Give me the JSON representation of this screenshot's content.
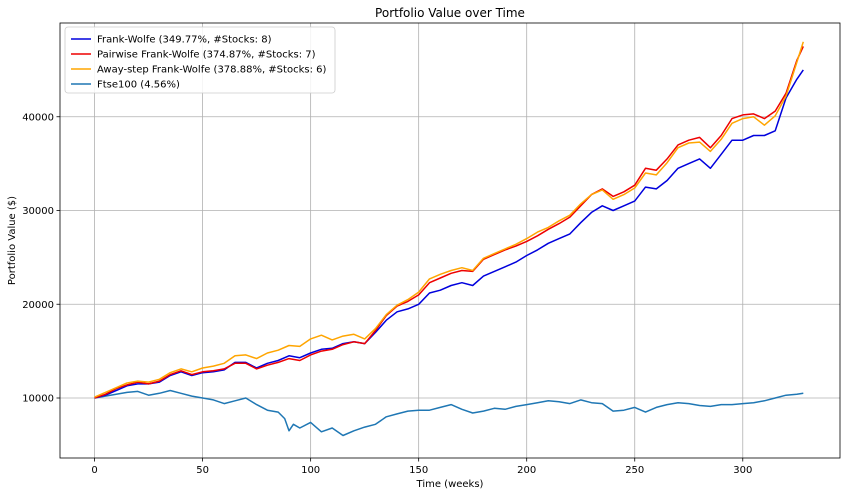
{
  "chart_data": {
    "type": "line",
    "title": "Portfolio Value over Time",
    "xlabel": "Time (weeks)",
    "ylabel": "Portfolio Value ($)",
    "xlim": [
      -16,
      345
    ],
    "ylim": [
      3600,
      50000
    ],
    "xticks": [
      0,
      50,
      100,
      150,
      200,
      250,
      300
    ],
    "yticks": [
      10000,
      20000,
      30000,
      40000
    ],
    "grid": true,
    "legend_position": "top-left",
    "series": [
      {
        "name": "Frank-Wolfe (349.77%, #Stocks: 8)",
        "color": "#0000dd",
        "x": [
          0,
          5,
          10,
          15,
          20,
          25,
          30,
          35,
          40,
          45,
          50,
          55,
          60,
          65,
          70,
          75,
          80,
          85,
          90,
          95,
          100,
          105,
          110,
          115,
          120,
          125,
          130,
          135,
          140,
          145,
          150,
          155,
          160,
          165,
          170,
          175,
          180,
          185,
          190,
          195,
          200,
          205,
          210,
          215,
          220,
          225,
          230,
          235,
          240,
          245,
          250,
          255,
          260,
          265,
          270,
          275,
          280,
          285,
          290,
          295,
          300,
          305,
          310,
          315,
          320,
          325,
          328
        ],
        "y": [
          10000,
          10300,
          10800,
          11300,
          11500,
          11500,
          11700,
          12400,
          12800,
          12400,
          12700,
          12800,
          13000,
          13800,
          13800,
          13200,
          13700,
          14000,
          14500,
          14300,
          14800,
          15200,
          15300,
          15800,
          16000,
          15800,
          17000,
          18300,
          19200,
          19500,
          20000,
          21200,
          21500,
          22000,
          22300,
          22000,
          23000,
          23500,
          24000,
          24500,
          25200,
          25800,
          26500,
          27000,
          27500,
          28700,
          29800,
          30500,
          30000,
          30500,
          31000,
          32500,
          32300,
          33200,
          34500,
          35000,
          35500,
          34500,
          36000,
          37500,
          37500,
          38000,
          38000,
          38500,
          42000,
          44000,
          45000
        ]
      },
      {
        "name": "Pairwise Frank-Wolfe (374.87%, #Stocks: 7)",
        "color": "#ee0000",
        "x": [
          0,
          5,
          10,
          15,
          20,
          25,
          30,
          35,
          40,
          45,
          50,
          55,
          60,
          65,
          70,
          75,
          80,
          85,
          90,
          95,
          100,
          105,
          110,
          115,
          120,
          125,
          130,
          135,
          140,
          145,
          150,
          155,
          160,
          165,
          170,
          175,
          180,
          185,
          190,
          195,
          200,
          205,
          210,
          215,
          220,
          225,
          230,
          235,
          240,
          245,
          250,
          255,
          260,
          265,
          270,
          275,
          280,
          285,
          290,
          295,
          300,
          305,
          310,
          315,
          320,
          325,
          328
        ],
        "y": [
          10000,
          10400,
          11000,
          11400,
          11700,
          11500,
          11800,
          12500,
          12900,
          12500,
          12800,
          12900,
          13100,
          13700,
          13700,
          13100,
          13500,
          13800,
          14200,
          14000,
          14600,
          15000,
          15200,
          15700,
          16000,
          15800,
          17200,
          18800,
          19800,
          20300,
          21000,
          22300,
          22800,
          23300,
          23600,
          23500,
          24800,
          25300,
          25800,
          26200,
          26700,
          27300,
          28000,
          28600,
          29300,
          30500,
          31700,
          32300,
          31500,
          32000,
          32700,
          34500,
          34300,
          35500,
          37000,
          37500,
          37800,
          36700,
          38000,
          39800,
          40200,
          40300,
          39800,
          40600,
          42500,
          46000,
          47500
        ]
      },
      {
        "name": "Away-step Frank-Wolfe (378.88%, #Stocks: 6)",
        "color": "#ffa500",
        "x": [
          0,
          5,
          10,
          15,
          20,
          25,
          30,
          35,
          40,
          45,
          50,
          55,
          60,
          65,
          70,
          75,
          80,
          85,
          90,
          95,
          100,
          105,
          110,
          115,
          120,
          125,
          130,
          135,
          140,
          145,
          150,
          155,
          160,
          165,
          170,
          175,
          180,
          185,
          190,
          195,
          200,
          205,
          210,
          215,
          220,
          225,
          230,
          235,
          240,
          245,
          250,
          255,
          260,
          265,
          270,
          275,
          280,
          285,
          290,
          295,
          300,
          305,
          310,
          315,
          320,
          325,
          328
        ],
        "y": [
          10100,
          10600,
          11100,
          11600,
          11800,
          11700,
          12000,
          12700,
          13100,
          12800,
          13200,
          13400,
          13700,
          14500,
          14600,
          14200,
          14800,
          15100,
          15600,
          15500,
          16300,
          16700,
          16200,
          16600,
          16800,
          16300,
          17400,
          18900,
          19900,
          20500,
          21300,
          22700,
          23200,
          23600,
          23900,
          23600,
          24900,
          25400,
          25900,
          26400,
          27000,
          27700,
          28200,
          28900,
          29500,
          30700,
          31700,
          32200,
          31200,
          31700,
          32400,
          34000,
          33800,
          35100,
          36700,
          37200,
          37300,
          36300,
          37600,
          39300,
          39800,
          40000,
          39100,
          40100,
          42200,
          45800,
          48000
        ]
      },
      {
        "name": "Ftse100 (4.56%)",
        "color": "#1f77b4",
        "x": [
          0,
          5,
          10,
          15,
          20,
          25,
          30,
          35,
          40,
          45,
          50,
          55,
          60,
          65,
          70,
          75,
          80,
          85,
          88,
          90,
          92,
          95,
          100,
          105,
          110,
          115,
          120,
          125,
          130,
          135,
          140,
          145,
          150,
          155,
          160,
          165,
          170,
          175,
          180,
          185,
          190,
          195,
          200,
          205,
          210,
          215,
          220,
          225,
          230,
          235,
          240,
          245,
          250,
          255,
          260,
          265,
          270,
          275,
          280,
          285,
          290,
          295,
          300,
          305,
          310,
          315,
          320,
          325,
          328
        ],
        "y": [
          10000,
          10200,
          10400,
          10600,
          10700,
          10300,
          10500,
          10800,
          10500,
          10200,
          10000,
          9800,
          9400,
          9700,
          10000,
          9300,
          8700,
          8500,
          7800,
          6500,
          7200,
          6800,
          7400,
          6400,
          6800,
          6000,
          6500,
          6900,
          7200,
          8000,
          8300,
          8600,
          8700,
          8700,
          9000,
          9300,
          8800,
          8400,
          8600,
          8900,
          8800,
          9100,
          9300,
          9500,
          9700,
          9600,
          9400,
          9800,
          9500,
          9400,
          8600,
          8700,
          9000,
          8500,
          9000,
          9300,
          9500,
          9400,
          9200,
          9100,
          9300,
          9300,
          9400,
          9500,
          9700,
          10000,
          10300,
          10400,
          10500
        ]
      }
    ]
  }
}
